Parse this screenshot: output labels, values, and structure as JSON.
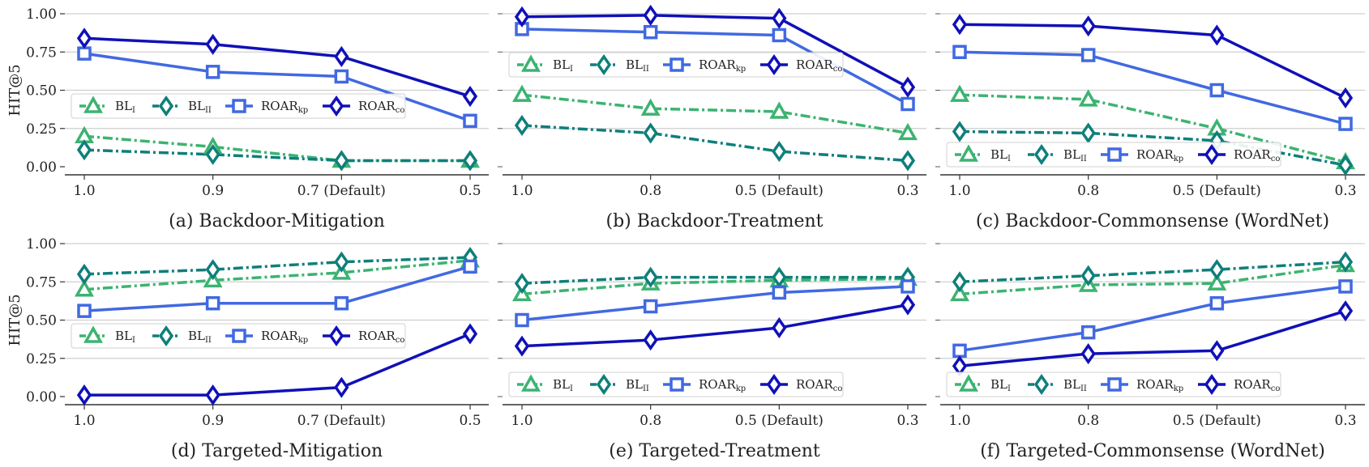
{
  "chart_data": [
    {
      "type": "line",
      "caption": "(a) Backdoor-Mitigation",
      "ylabel": "HIT@5",
      "categories": [
        "1.0",
        "0.9",
        "0.7 (Default)",
        "0.5"
      ],
      "ylim": [
        0,
        1
      ],
      "yticks": [
        "0.00",
        "0.25",
        "0.50",
        "0.75",
        "1.00"
      ],
      "grid": true,
      "legend_position": "middle",
      "series": [
        {
          "name": "BL",
          "sub": "I",
          "values": [
            0.2,
            0.13,
            0.04,
            0.04
          ]
        },
        {
          "name": "BL",
          "sub": "II",
          "values": [
            0.11,
            0.08,
            0.04,
            0.04
          ]
        },
        {
          "name": "ROAR",
          "sub": "kp",
          "values": [
            0.74,
            0.62,
            0.59,
            0.3
          ]
        },
        {
          "name": "ROAR",
          "sub": "co",
          "values": [
            0.84,
            0.8,
            0.72,
            0.46
          ]
        }
      ]
    },
    {
      "type": "line",
      "caption": "(b) Backdoor-Treatment",
      "ylabel": "",
      "categories": [
        "1.0",
        "0.8",
        "0.5 (Default)",
        "0.3"
      ],
      "ylim": [
        0,
        1
      ],
      "yticks": [],
      "grid": true,
      "legend_position": "upper",
      "series": [
        {
          "name": "BL",
          "sub": "I",
          "values": [
            0.47,
            0.38,
            0.36,
            0.22
          ]
        },
        {
          "name": "BL",
          "sub": "II",
          "values": [
            0.27,
            0.22,
            0.1,
            0.04
          ]
        },
        {
          "name": "ROAR",
          "sub": "kp",
          "values": [
            0.9,
            0.88,
            0.86,
            0.41
          ]
        },
        {
          "name": "ROAR",
          "sub": "co",
          "values": [
            0.98,
            0.99,
            0.97,
            0.52
          ]
        }
      ]
    },
    {
      "type": "line",
      "caption": "(c) Backdoor-Commonsense (WordNet)",
      "ylabel": "",
      "categories": [
        "1.0",
        "0.8",
        "0.5 (Default)",
        "0.3"
      ],
      "ylim": [
        0,
        1
      ],
      "yticks": [],
      "grid": true,
      "legend_position": "bottom",
      "series": [
        {
          "name": "BL",
          "sub": "I",
          "values": [
            0.47,
            0.44,
            0.25,
            0.03
          ]
        },
        {
          "name": "BL",
          "sub": "II",
          "values": [
            0.23,
            0.22,
            0.17,
            0.01
          ]
        },
        {
          "name": "ROAR",
          "sub": "kp",
          "values": [
            0.75,
            0.73,
            0.5,
            0.28
          ]
        },
        {
          "name": "ROAR",
          "sub": "co",
          "values": [
            0.93,
            0.92,
            0.86,
            0.45
          ]
        }
      ]
    },
    {
      "type": "line",
      "caption": "(d) Targeted-Mitigation",
      "ylabel": "HIT@5",
      "categories": [
        "1.0",
        "0.9",
        "0.7 (Default)",
        "0.5"
      ],
      "ylim": [
        0,
        1
      ],
      "yticks": [
        "0.00",
        "0.25",
        "0.50",
        "0.75",
        "1.00"
      ],
      "grid": true,
      "legend_position": "middle",
      "series": [
        {
          "name": "BL",
          "sub": "I",
          "values": [
            0.7,
            0.76,
            0.81,
            0.89
          ]
        },
        {
          "name": "BL",
          "sub": "II",
          "values": [
            0.8,
            0.83,
            0.88,
            0.91
          ]
        },
        {
          "name": "ROAR",
          "sub": "kp",
          "values": [
            0.56,
            0.61,
            0.61,
            0.85
          ]
        },
        {
          "name": "ROAR",
          "sub": "co",
          "values": [
            0.01,
            0.01,
            0.06,
            0.41
          ]
        }
      ]
    },
    {
      "type": "line",
      "caption": "(e) Targeted-Treatment",
      "ylabel": "",
      "categories": [
        "1.0",
        "0.8",
        "0.5 (Default)",
        "0.3"
      ],
      "ylim": [
        0,
        1
      ],
      "yticks": [],
      "grid": true,
      "legend_position": "bottom",
      "series": [
        {
          "name": "BL",
          "sub": "I",
          "values": [
            0.67,
            0.74,
            0.76,
            0.77
          ]
        },
        {
          "name": "BL",
          "sub": "II",
          "values": [
            0.74,
            0.78,
            0.78,
            0.78
          ]
        },
        {
          "name": "ROAR",
          "sub": "kp",
          "values": [
            0.5,
            0.59,
            0.68,
            0.72
          ]
        },
        {
          "name": "ROAR",
          "sub": "co",
          "values": [
            0.33,
            0.37,
            0.45,
            0.6
          ]
        }
      ]
    },
    {
      "type": "line",
      "caption": "(f) Targeted-Commonsense (WordNet)",
      "ylabel": "",
      "categories": [
        "1.0",
        "0.8",
        "0.5 (Default)",
        "0.3"
      ],
      "ylim": [
        0,
        1
      ],
      "yticks": [],
      "grid": true,
      "legend_position": "bottom",
      "series": [
        {
          "name": "BL",
          "sub": "I",
          "values": [
            0.67,
            0.73,
            0.74,
            0.86
          ]
        },
        {
          "name": "BL",
          "sub": "II",
          "values": [
            0.75,
            0.79,
            0.83,
            0.88
          ]
        },
        {
          "name": "ROAR",
          "sub": "kp",
          "values": [
            0.3,
            0.42,
            0.61,
            0.72
          ]
        },
        {
          "name": "ROAR",
          "sub": "co",
          "values": [
            0.2,
            0.28,
            0.3,
            0.56
          ]
        }
      ]
    }
  ],
  "series_styles": [
    {
      "color": "#3cb371",
      "marker": "triangle",
      "dash": "dashdot"
    },
    {
      "color": "#0f7f7a",
      "marker": "diamond",
      "dash": "dashdot"
    },
    {
      "color": "#4169e1",
      "marker": "square",
      "dash": "solid"
    },
    {
      "color": "#1010b8",
      "marker": "diamond",
      "dash": "solid"
    }
  ]
}
